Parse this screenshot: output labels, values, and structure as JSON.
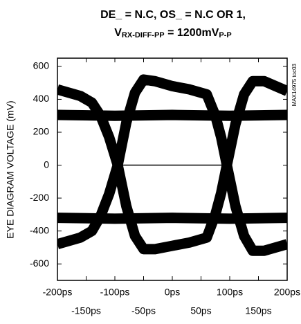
{
  "chart_data": {
    "type": "line",
    "title_line1": "DE_ = N.C, OS_ = N.C OR 1,",
    "title_line2": [
      "V",
      "RX-DIFF-PP",
      " = 1200mV",
      "P-P"
    ],
    "ylabel": "EYE DIAGRAM VOLTAGE (mV)",
    "side_note": "MAX14975 toc03",
    "xlim": [
      -200,
      200
    ],
    "ylim": [
      -700,
      650
    ],
    "xticks": [
      {
        "value": -200,
        "label": "-200ps"
      },
      {
        "value": -150,
        "label": "-150ps"
      },
      {
        "value": -100,
        "label": "-100ps"
      },
      {
        "value": -50,
        "label": "-50ps"
      },
      {
        "value": 0,
        "label": "0ps"
      },
      {
        "value": 50,
        "label": "50ps"
      },
      {
        "value": 100,
        "label": "100ps"
      },
      {
        "value": 150,
        "label": "150ps"
      },
      {
        "value": 200,
        "label": "200ps"
      }
    ],
    "yticks": [
      -600,
      -400,
      -200,
      0,
      200,
      400,
      600
    ],
    "series": [
      {
        "color": "#000000",
        "x": [
          -200,
          -100,
          0,
          100,
          200
        ],
        "values": [
          305,
          300,
          305,
          300,
          305
        ]
      },
      {
        "color": "#000000",
        "x": [
          -200,
          -100,
          0,
          100,
          200
        ],
        "values": [
          -320,
          -325,
          -320,
          -325,
          -320
        ]
      },
      {
        "color": "#000000",
        "x": [
          -200,
          -180,
          -160,
          -140,
          -125,
          -110,
          -95,
          -80,
          -65,
          -50,
          -30,
          0,
          30,
          60,
          75,
          85,
          95,
          110,
          125,
          140,
          160,
          180,
          200
        ],
        "values": [
          460,
          440,
          420,
          380,
          300,
          170,
          0,
          -250,
          -430,
          -510,
          -510,
          -490,
          -470,
          -440,
          -300,
          -170,
          0,
          250,
          430,
          510,
          510,
          480,
          450
        ]
      },
      {
        "color": "#000000",
        "x": [
          -200,
          -180,
          -160,
          -140,
          -125,
          -110,
          -95,
          -80,
          -65,
          -50,
          -30,
          0,
          30,
          60,
          75,
          85,
          95,
          110,
          125,
          140,
          160,
          180,
          200
        ],
        "values": [
          -480,
          -460,
          -440,
          -400,
          -310,
          -175,
          0,
          260,
          440,
          520,
          510,
          480,
          460,
          430,
          300,
          170,
          0,
          -250,
          -430,
          -520,
          -520,
          -500,
          -480
        ]
      }
    ],
    "arrow": {
      "x": [
        -97,
        97
      ],
      "y": 0
    }
  }
}
